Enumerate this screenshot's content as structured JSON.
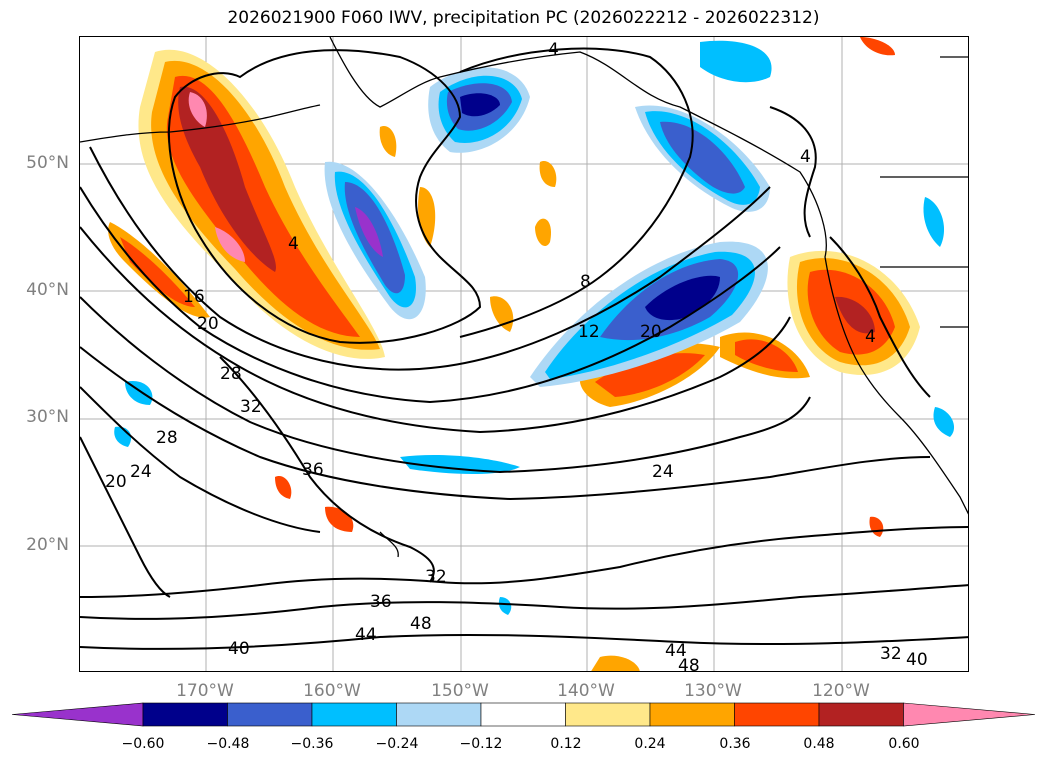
{
  "title": "2026021900 F060 IWV, precipitation PC (2026022212 - 2026022312)",
  "lat_labels": [
    "50°N",
    "40°N",
    "30°N",
    "20°N"
  ],
  "lon_labels": [
    "170°W",
    "160°W",
    "150°W",
    "140°W",
    "130°W",
    "120°W"
  ],
  "colorbar": {
    "ticks": [
      "−0.60",
      "−0.48",
      "−0.36",
      "−0.24",
      "−0.12",
      "0.12",
      "0.24",
      "0.36",
      "0.48",
      "0.60"
    ],
    "colors": [
      "#9932cc",
      "#00008b",
      "#3a5fcd",
      "#00bfff",
      "#add8f5",
      "#ffffff",
      "#ffe88a",
      "#ffa500",
      "#ff4500",
      "#b22222",
      "#ff88b0"
    ]
  },
  "contour_labels": [
    "4",
    "4",
    "4",
    "4",
    "8",
    "12",
    "16",
    "20",
    "20",
    "20",
    "24",
    "24",
    "28",
    "28",
    "32",
    "32",
    "32",
    "36",
    "36",
    "40",
    "40",
    "44",
    "44",
    "48",
    "48"
  ]
}
